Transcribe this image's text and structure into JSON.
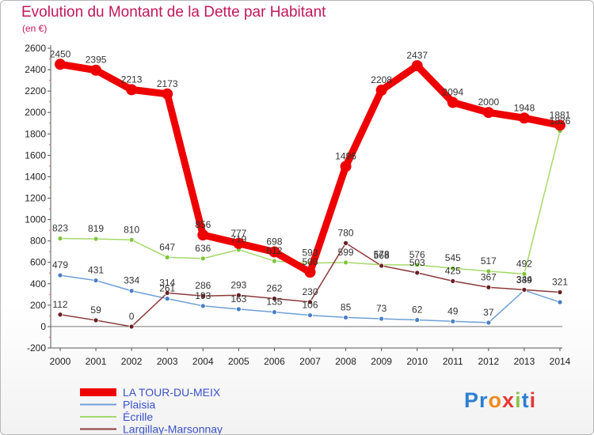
{
  "title": "Evolution du Montant de la Dette par Habitant",
  "subtitle": "(en €)",
  "logo": {
    "text": "Proxiti",
    "colors": [
      "#2e7fd1",
      "#2e7fd1",
      "#f08a1c",
      "#e53935",
      "#8bc34a",
      "#2e7fd1",
      "#e53935"
    ]
  },
  "chart_data": {
    "type": "line",
    "x": [
      2000,
      2001,
      2002,
      2003,
      2004,
      2005,
      2006,
      2007,
      2008,
      2009,
      2010,
      2011,
      2012,
      2013,
      2014
    ],
    "ylim": [
      -200,
      2600
    ],
    "yticks": [
      -200,
      0,
      200,
      400,
      600,
      800,
      1000,
      1200,
      1400,
      1600,
      1800,
      2000,
      2200,
      2400,
      2600
    ],
    "grid": false,
    "legend_position": "bottom-left",
    "series": [
      {
        "name": "Plaisia",
        "color": "#6fa0d8",
        "marker": "#4a7ec4",
        "values": [
          479,
          431,
          334,
          261,
          193,
          163,
          135,
          106,
          85,
          73,
          62,
          49,
          37,
          339,
          228
        ],
        "labels": [
          "479",
          "431",
          "334",
          "261",
          "193",
          "163",
          "135",
          "106",
          "85",
          "73",
          "62",
          "49",
          "37",
          "339",
          ""
        ]
      },
      {
        "name": "Écrille",
        "color": "#a5d96a",
        "marker": "#7cc63a",
        "values": [
          823,
          819,
          810,
          647,
          636,
          719,
          612,
          593,
          599,
          578,
          576,
          545,
          517,
          492,
          1826
        ],
        "labels": [
          "823",
          "819",
          "810",
          "647",
          "636",
          "719",
          "612",
          "593",
          "599",
          "578",
          "576",
          "545",
          "517",
          "492",
          "1826"
        ]
      },
      {
        "name": "Largillay-Marsonnay",
        "color": "#8b3a3a",
        "marker": "#6b1f1f",
        "values": [
          112,
          59,
          0,
          314,
          286,
          293,
          262,
          230,
          780,
          568,
          503,
          425,
          367,
          344,
          321
        ],
        "labels": [
          "112",
          "59",
          "0",
          "314",
          "286",
          "293",
          "262",
          "230",
          "780",
          "568",
          "503",
          "425",
          "367",
          "344",
          "321"
        ]
      },
      {
        "name": "LA TOUR-DU-MEIX",
        "color": "#ee0000",
        "marker": "#ee0000",
        "values": [
          2450,
          2395,
          2213,
          2173,
          856,
          777,
          698,
          508,
          1496,
          2208,
          2437,
          2094,
          2000,
          1948,
          1881
        ],
        "labels": [
          "2450",
          "2395",
          "2213",
          "2173",
          "856",
          "777",
          "698",
          "508",
          "1496",
          "2208",
          "2437",
          "2094",
          "2000",
          "1948",
          "1881"
        ]
      }
    ]
  }
}
